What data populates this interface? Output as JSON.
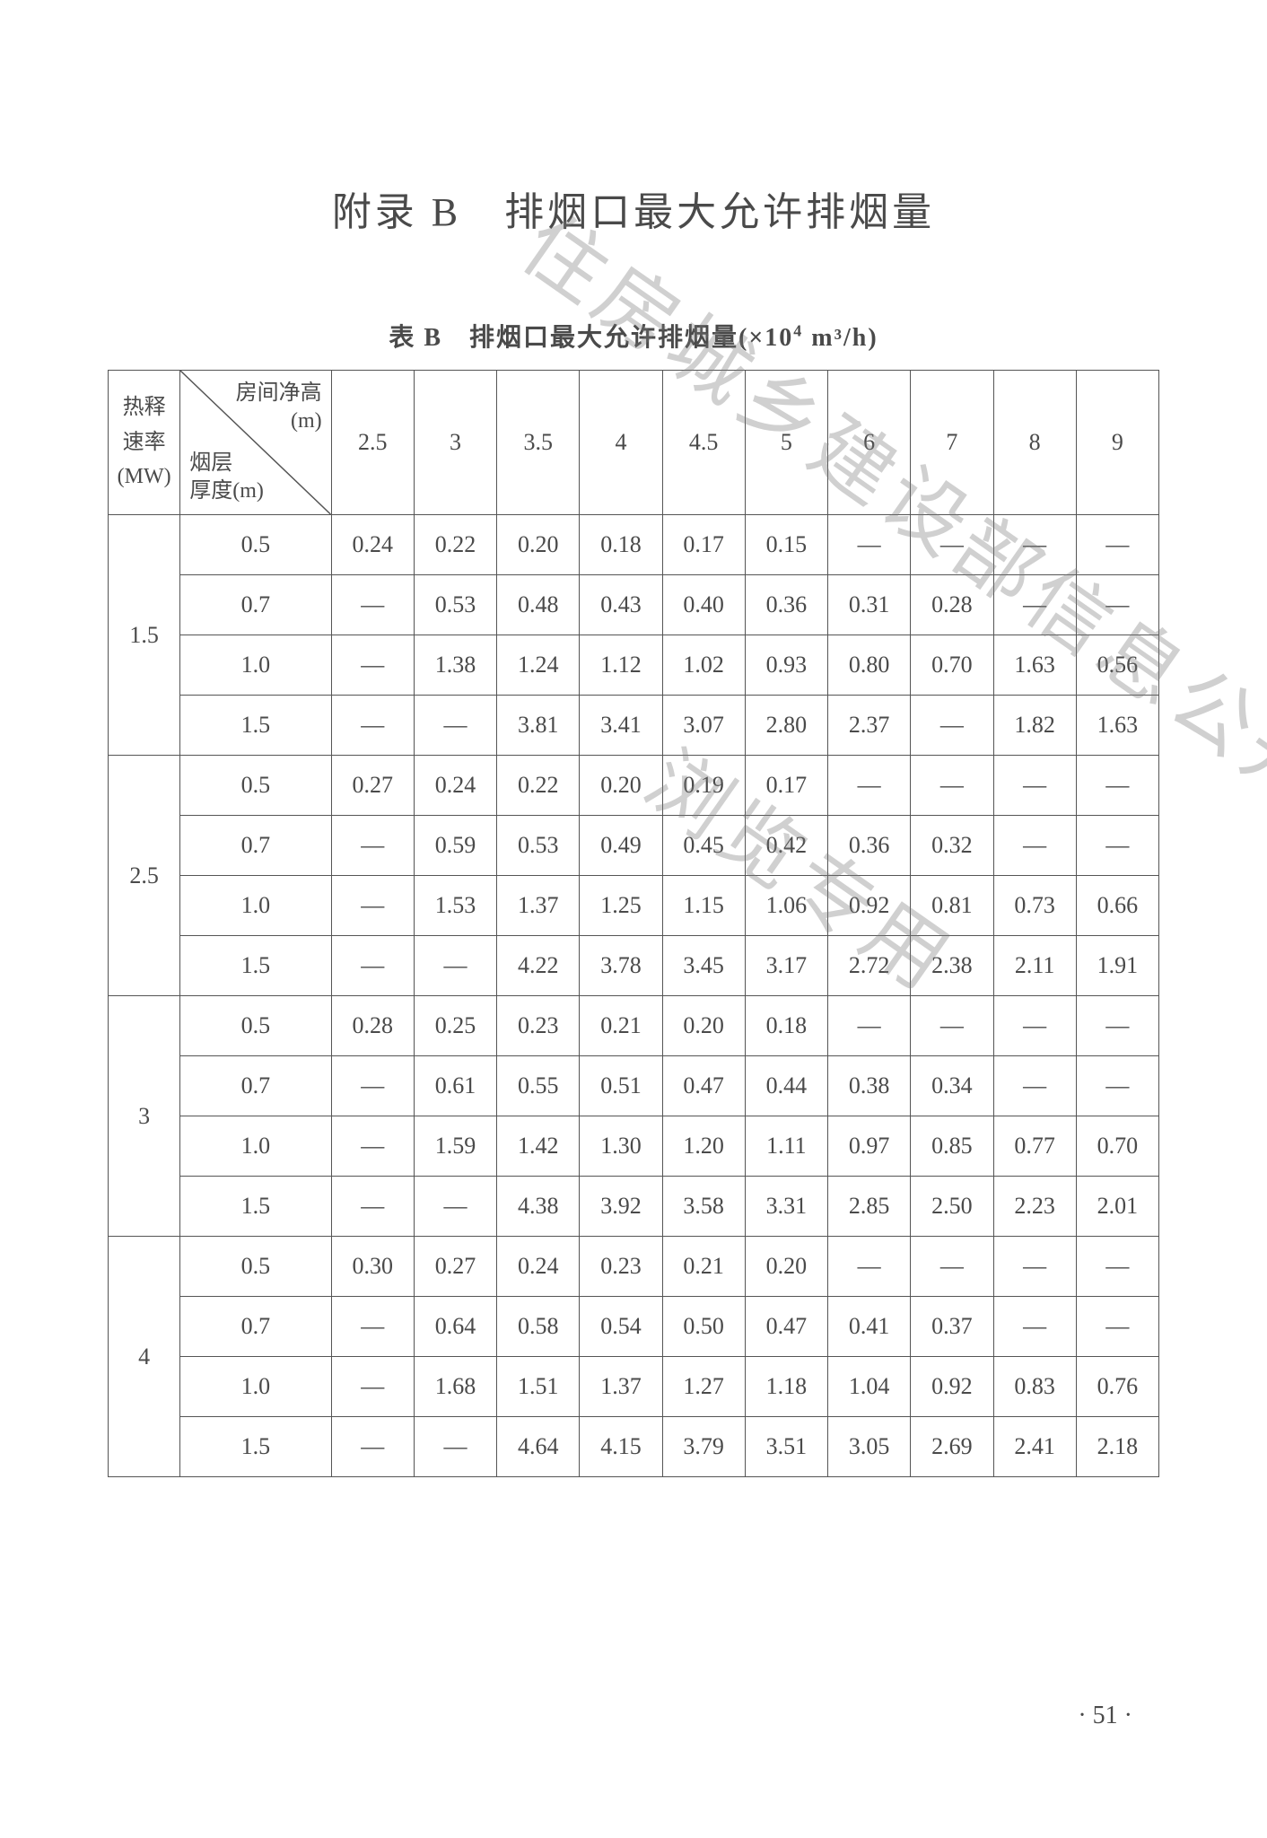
{
  "title": "附录 B　排烟口最大允许排烟量",
  "caption_prefix": "表 B　排烟口最大允许排烟量(×10",
  "caption_sup": "4",
  "caption_suffix": " m³/h)",
  "rate_header_l1": "热释",
  "rate_header_l2": "速率",
  "rate_header_l3": "(MW)",
  "diag_top_l1": "房间净高",
  "diag_top_l2": "(m)",
  "diag_bottom_l1": "烟层",
  "diag_bottom_l2": "厚度(m)",
  "col_heights": [
    "2.5",
    "3",
    "3.5",
    "4",
    "4.5",
    "5",
    "6",
    "7",
    "8",
    "9"
  ],
  "watermark1": "住房城乡建设部信息公开",
  "watermark2": "浏览专用",
  "page_number": "· 51 ·",
  "groups": [
    {
      "rate": "1.5",
      "rows": [
        {
          "thick": "0.5",
          "v": [
            "0.24",
            "0.22",
            "0.20",
            "0.18",
            "0.17",
            "0.15",
            "—",
            "—",
            "—",
            "—"
          ]
        },
        {
          "thick": "0.7",
          "v": [
            "—",
            "0.53",
            "0.48",
            "0.43",
            "0.40",
            "0.36",
            "0.31",
            "0.28",
            "—",
            "—"
          ]
        },
        {
          "thick": "1.0",
          "v": [
            "—",
            "1.38",
            "1.24",
            "1.12",
            "1.02",
            "0.93",
            "0.80",
            "0.70",
            "1.63",
            "0.56"
          ]
        },
        {
          "thick": "1.5",
          "v": [
            "—",
            "—",
            "3.81",
            "3.41",
            "3.07",
            "2.80",
            "2.37",
            "—",
            "1.82",
            "1.63"
          ]
        }
      ]
    },
    {
      "rate": "2.5",
      "rows": [
        {
          "thick": "0.5",
          "v": [
            "0.27",
            "0.24",
            "0.22",
            "0.20",
            "0.19",
            "0.17",
            "—",
            "—",
            "—",
            "—"
          ]
        },
        {
          "thick": "0.7",
          "v": [
            "—",
            "0.59",
            "0.53",
            "0.49",
            "0.45",
            "0.42",
            "0.36",
            "0.32",
            "—",
            "—"
          ]
        },
        {
          "thick": "1.0",
          "v": [
            "—",
            "1.53",
            "1.37",
            "1.25",
            "1.15",
            "1.06",
            "0.92",
            "0.81",
            "0.73",
            "0.66"
          ]
        },
        {
          "thick": "1.5",
          "v": [
            "—",
            "—",
            "4.22",
            "3.78",
            "3.45",
            "3.17",
            "2.72",
            "2.38",
            "2.11",
            "1.91"
          ]
        }
      ]
    },
    {
      "rate": "3",
      "rows": [
        {
          "thick": "0.5",
          "v": [
            "0.28",
            "0.25",
            "0.23",
            "0.21",
            "0.20",
            "0.18",
            "—",
            "—",
            "—",
            "—"
          ]
        },
        {
          "thick": "0.7",
          "v": [
            "—",
            "0.61",
            "0.55",
            "0.51",
            "0.47",
            "0.44",
            "0.38",
            "0.34",
            "—",
            "—"
          ]
        },
        {
          "thick": "1.0",
          "v": [
            "—",
            "1.59",
            "1.42",
            "1.30",
            "1.20",
            "1.11",
            "0.97",
            "0.85",
            "0.77",
            "0.70"
          ]
        },
        {
          "thick": "1.5",
          "v": [
            "—",
            "—",
            "4.38",
            "3.92",
            "3.58",
            "3.31",
            "2.85",
            "2.50",
            "2.23",
            "2.01"
          ]
        }
      ]
    },
    {
      "rate": "4",
      "rows": [
        {
          "thick": "0.5",
          "v": [
            "0.30",
            "0.27",
            "0.24",
            "0.23",
            "0.21",
            "0.20",
            "—",
            "—",
            "—",
            "—"
          ]
        },
        {
          "thick": "0.7",
          "v": [
            "—",
            "0.64",
            "0.58",
            "0.54",
            "0.50",
            "0.47",
            "0.41",
            "0.37",
            "—",
            "—"
          ]
        },
        {
          "thick": "1.0",
          "v": [
            "—",
            "1.68",
            "1.51",
            "1.37",
            "1.27",
            "1.18",
            "1.04",
            "0.92",
            "0.83",
            "0.76"
          ]
        },
        {
          "thick": "1.5",
          "v": [
            "—",
            "—",
            "4.64",
            "4.15",
            "3.79",
            "3.51",
            "3.05",
            "2.69",
            "2.41",
            "2.18"
          ]
        }
      ]
    }
  ]
}
